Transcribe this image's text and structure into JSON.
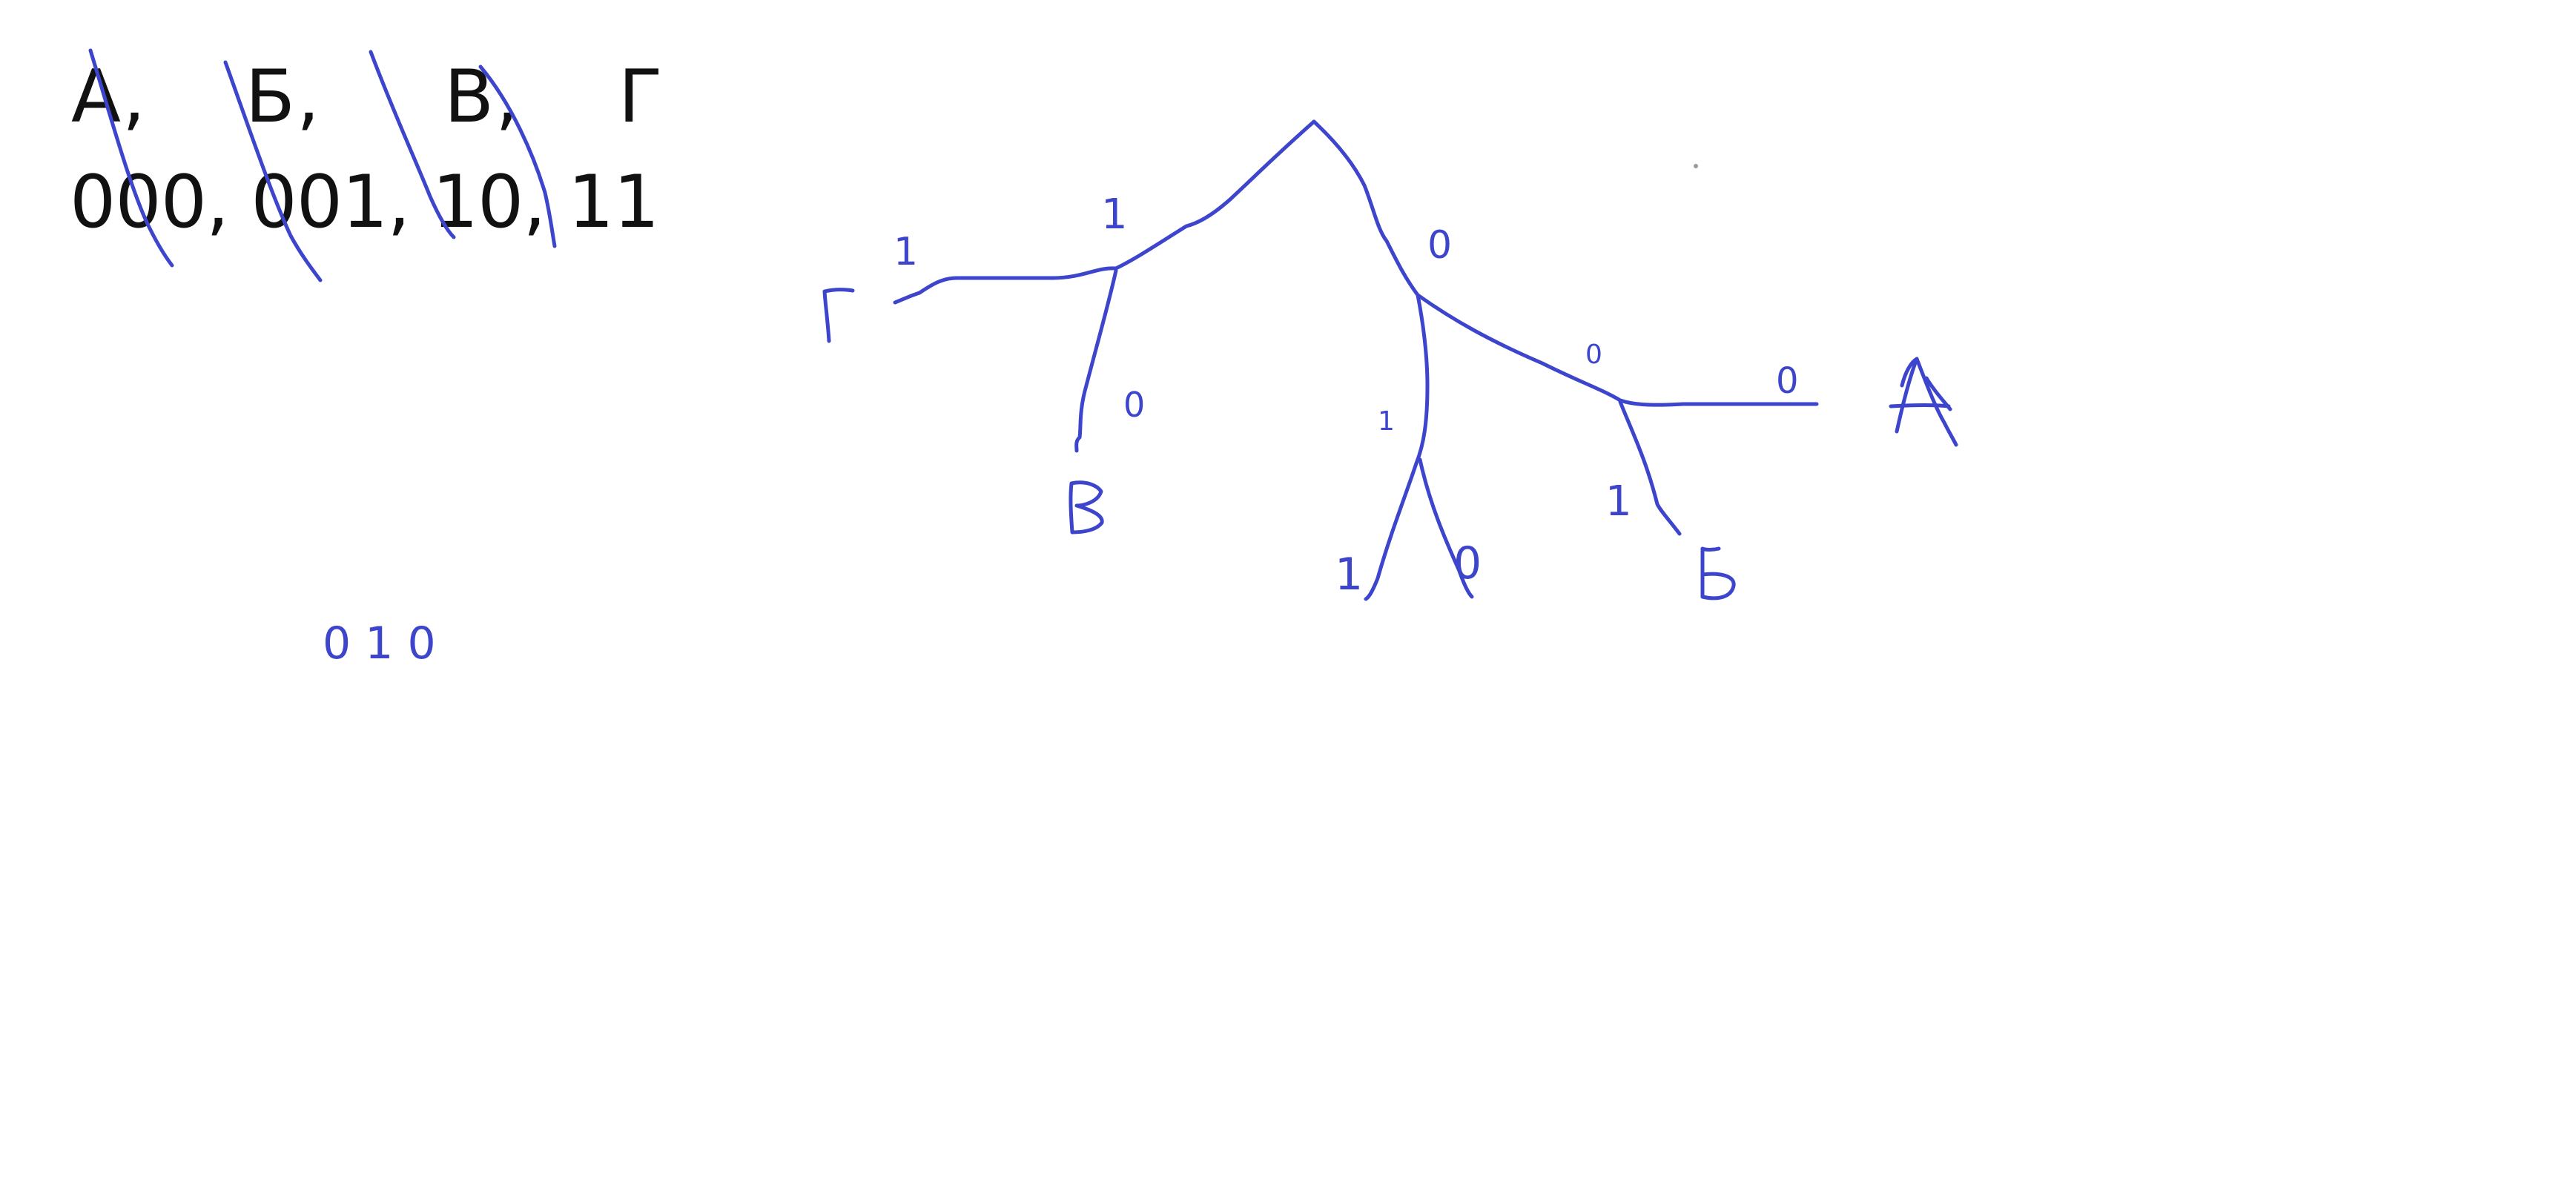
{
  "typed_text": {
    "letters": "А,    Б,     В,    Г",
    "codes": "000, 001, 10, 11"
  },
  "handwriting": {
    "tree_edge_labels": [
      "1",
      "0",
      "1",
      "0",
      "1",
      "0",
      "1",
      "0",
      "1",
      "0"
    ],
    "tree_leaf_labels": [
      "Г",
      "В",
      "А",
      "Б"
    ],
    "bottom_note": "0 1 0"
  },
  "colors": {
    "ink": "#3d45cc",
    "typed_text": "#111111",
    "background": "#ffffff"
  }
}
